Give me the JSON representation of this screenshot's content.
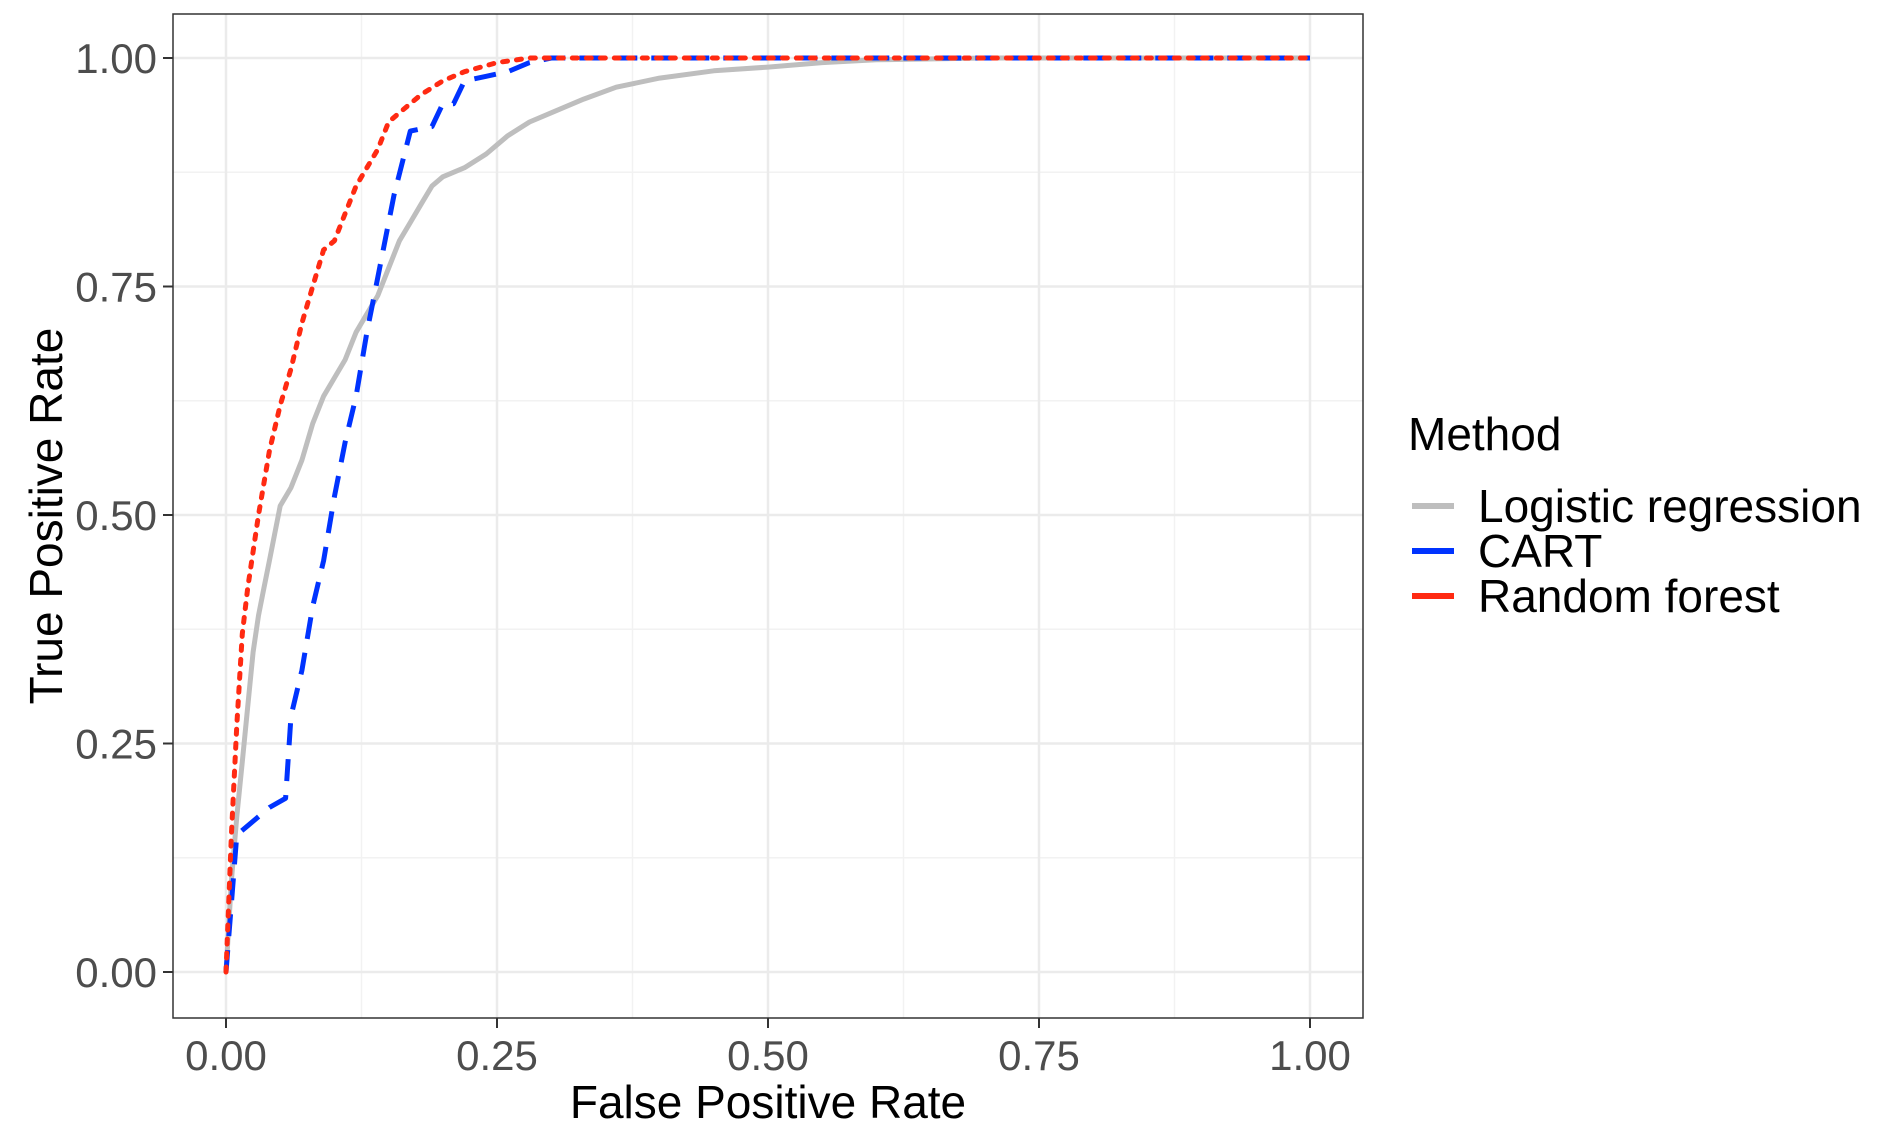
{
  "chart_data": {
    "type": "line",
    "title": "",
    "xlabel": "False Positive Rate",
    "ylabel": "True Positive Rate",
    "xlim": [
      0,
      1
    ],
    "ylim": [
      0,
      1
    ],
    "x_ticks": [
      0,
      0.25,
      0.5,
      0.75,
      1
    ],
    "y_ticks": [
      0,
      0.25,
      0.5,
      0.75,
      1
    ],
    "x_tick_labels": [
      "0.00",
      "0.25",
      "0.50",
      "0.75",
      "1.00"
    ],
    "y_tick_labels": [
      "0.00",
      "0.25",
      "0.50",
      "0.75",
      "1.00"
    ],
    "grid": true,
    "legend": {
      "title": "Method",
      "position": "right"
    },
    "series": [
      {
        "name": "Logistic regression",
        "color": "#bebebe",
        "style": "solid",
        "x": [
          0,
          0.005,
          0.01,
          0.015,
          0.02,
          0.025,
          0.03,
          0.035,
          0.04,
          0.045,
          0.05,
          0.06,
          0.07,
          0.08,
          0.09,
          0.1,
          0.11,
          0.12,
          0.13,
          0.14,
          0.15,
          0.16,
          0.17,
          0.18,
          0.19,
          0.2,
          0.22,
          0.24,
          0.26,
          0.28,
          0.3,
          0.33,
          0.36,
          0.4,
          0.45,
          0.5,
          0.55,
          0.6,
          0.7,
          0.8,
          1.0
        ],
        "y": [
          0,
          0.1,
          0.17,
          0.23,
          0.29,
          0.35,
          0.39,
          0.42,
          0.45,
          0.48,
          0.51,
          0.53,
          0.56,
          0.6,
          0.63,
          0.65,
          0.67,
          0.7,
          0.72,
          0.74,
          0.77,
          0.8,
          0.82,
          0.84,
          0.86,
          0.87,
          0.88,
          0.895,
          0.915,
          0.93,
          0.94,
          0.955,
          0.968,
          0.978,
          0.986,
          0.99,
          0.995,
          0.998,
          1.0,
          1.0,
          1.0
        ]
      },
      {
        "name": "CART",
        "color": "#0033ff",
        "style": "dashed",
        "x": [
          0,
          0.01,
          0.02,
          0.04,
          0.055,
          0.06,
          0.07,
          0.08,
          0.09,
          0.1,
          0.11,
          0.12,
          0.13,
          0.14,
          0.155,
          0.17,
          0.19,
          0.2,
          0.21,
          0.22,
          0.24,
          0.26,
          0.28,
          0.3,
          0.5,
          1.0
        ],
        "y": [
          0,
          0.15,
          0.16,
          0.18,
          0.19,
          0.28,
          0.33,
          0.4,
          0.45,
          0.52,
          0.58,
          0.63,
          0.7,
          0.76,
          0.85,
          0.92,
          0.925,
          0.95,
          0.95,
          0.975,
          0.98,
          0.985,
          0.995,
          1.0,
          1.0,
          1.0
        ]
      },
      {
        "name": "Random forest",
        "color": "#ff2a12",
        "style": "dotted",
        "x": [
          0,
          0.005,
          0.01,
          0.015,
          0.02,
          0.03,
          0.04,
          0.05,
          0.06,
          0.07,
          0.08,
          0.09,
          0.1,
          0.11,
          0.12,
          0.13,
          0.14,
          0.15,
          0.16,
          0.18,
          0.2,
          0.22,
          0.25,
          0.28,
          0.3,
          0.5,
          1.0
        ],
        "y": [
          0,
          0.15,
          0.27,
          0.37,
          0.42,
          0.5,
          0.57,
          0.62,
          0.66,
          0.71,
          0.75,
          0.79,
          0.8,
          0.83,
          0.86,
          0.88,
          0.9,
          0.93,
          0.94,
          0.96,
          0.975,
          0.985,
          0.995,
          1.0,
          1.0,
          1.0,
          1.0
        ]
      }
    ]
  }
}
